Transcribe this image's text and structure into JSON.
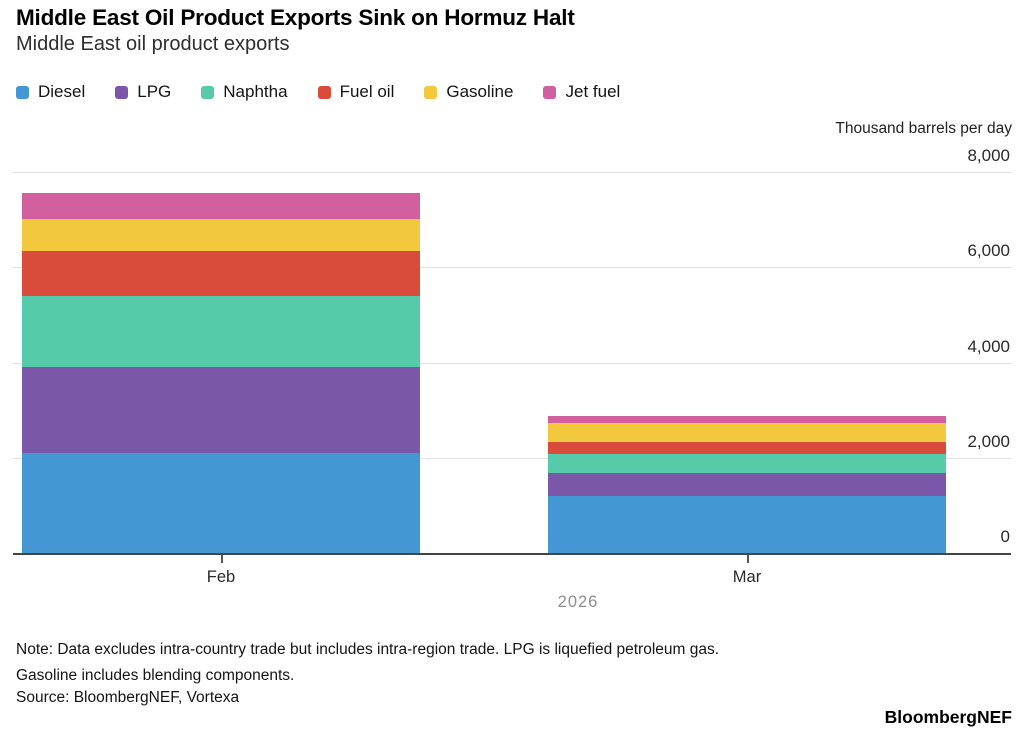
{
  "header": {
    "title": "Middle East Oil Product Exports Sink on Hormuz Halt",
    "subtitle": "Middle East oil product exports"
  },
  "footer": {
    "note_line1": "Note: Data excludes intra-country trade but includes intra-region trade. LPG is liquefied petroleum gas.",
    "note_line2": "Gasoline includes blending components.",
    "source": "Source: BloombergNEF, Vortexa",
    "brand": "BloombergNEF"
  },
  "chart_data": {
    "type": "bar",
    "stacked": true,
    "title": "Middle East Oil Product Exports Sink on Hormuz Halt",
    "subtitle": "Middle East oil product exports",
    "axis_title": "Thousand barrels per day",
    "categories": [
      "Feb",
      "Mar"
    ],
    "year_label": "2026",
    "series": [
      {
        "name": "Diesel",
        "color": "#4397d2",
        "values": [
          2100,
          1200
        ]
      },
      {
        "name": "LPG",
        "color": "#7b57a9",
        "values": [
          1800,
          480
        ]
      },
      {
        "name": "Naphtha",
        "color": "#56cbaa",
        "values": [
          1500,
          400
        ]
      },
      {
        "name": "Fuel oil",
        "color": "#d94b3a",
        "values": [
          950,
          250
        ]
      },
      {
        "name": "Gasoline",
        "color": "#f2c83e",
        "values": [
          660,
          400
        ]
      },
      {
        "name": "Jet fuel",
        "color": "#d2609f",
        "values": [
          560,
          140
        ]
      }
    ],
    "ylim": [
      0,
      8000
    ],
    "y_tick_values": [
      8000,
      6000,
      4000,
      2000,
      0
    ],
    "y_tick_labels": [
      "8,000",
      "6,000",
      "4,000",
      "2,000",
      "0"
    ],
    "grid": true,
    "legend_position": "top",
    "colors": {
      "gridline": "#e3e3e3",
      "axis": "#454545",
      "year_text": "#8e8e8e"
    }
  }
}
